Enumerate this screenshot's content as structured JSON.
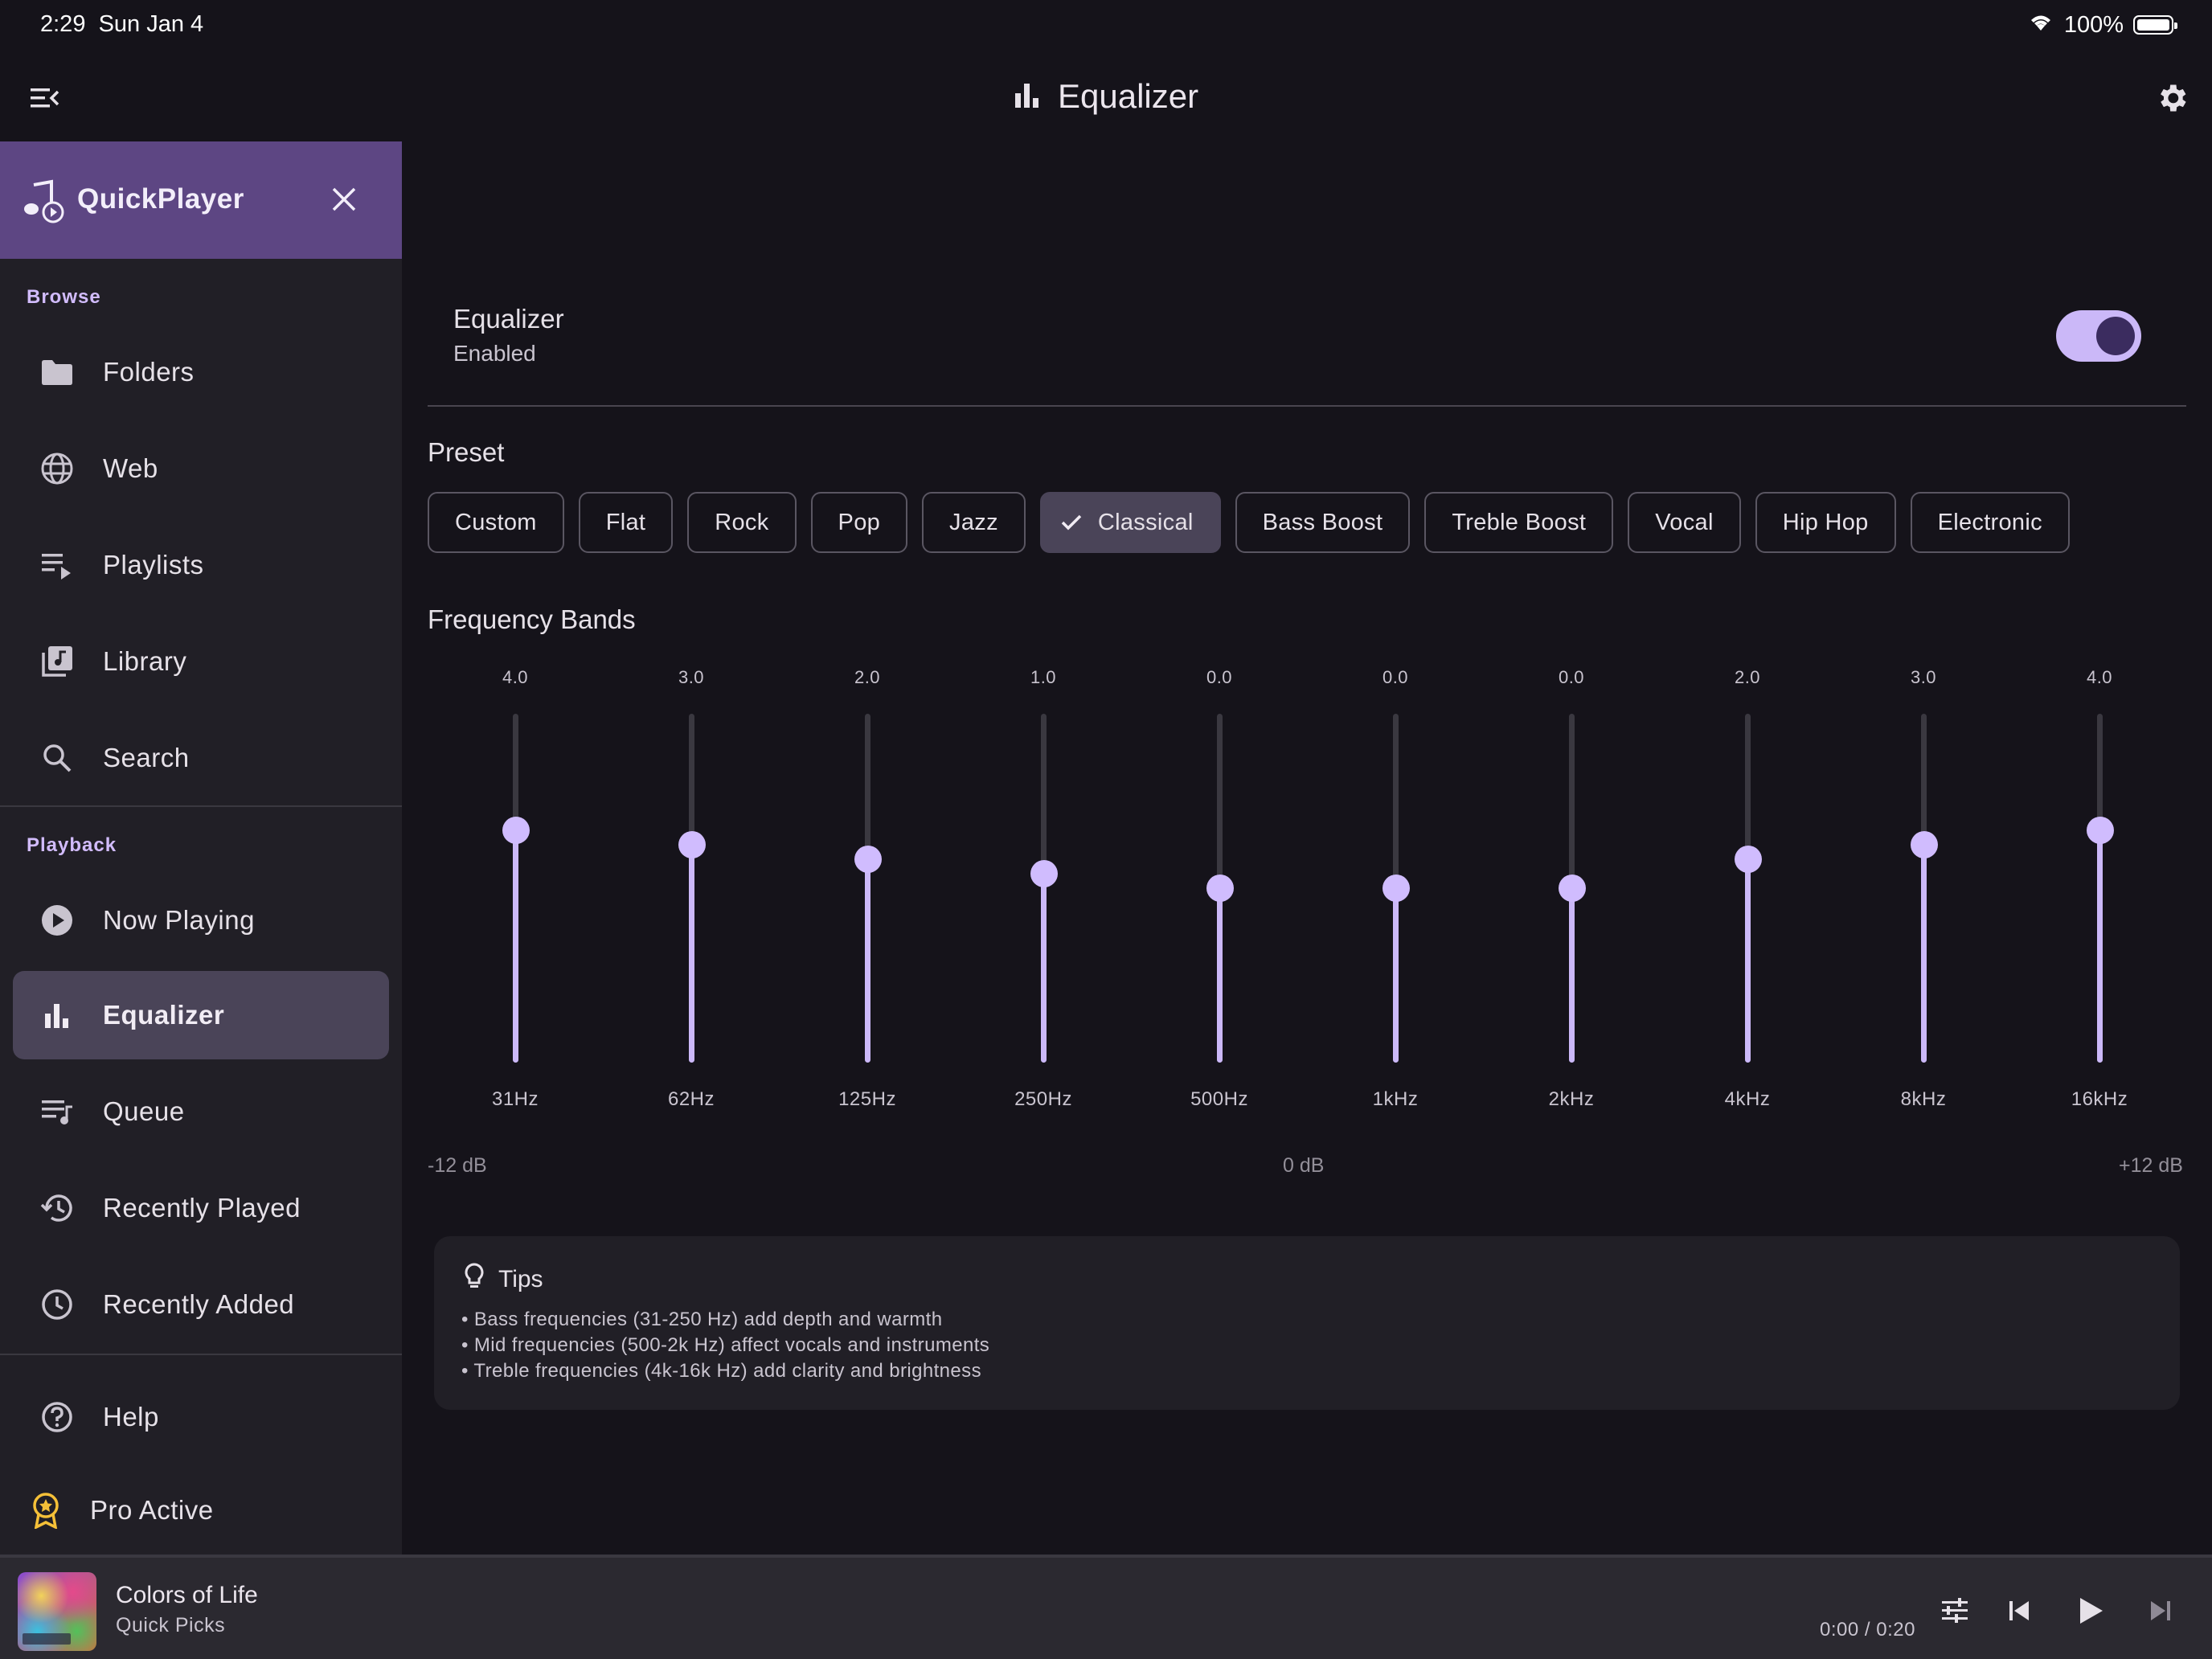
{
  "status_bar": {
    "time": "2:29",
    "date": "Sun Jan 4",
    "battery": "100%",
    "icons": [
      "wifi-icon",
      "battery-icon"
    ]
  },
  "app_bar": {
    "title": "Equalizer",
    "icons": [
      "menu-open-icon",
      "equalizer-icon",
      "gear-icon"
    ]
  },
  "sidebar": {
    "app_name": "QuickPlayer",
    "sections": {
      "browse": "Browse",
      "playback": "Playback"
    },
    "browse_items": [
      {
        "label": "Folders",
        "icon": "folder-icon"
      },
      {
        "label": "Web",
        "icon": "globe-icon"
      },
      {
        "label": "Playlists",
        "icon": "playlist-icon"
      },
      {
        "label": "Library",
        "icon": "library-icon"
      },
      {
        "label": "Search",
        "icon": "search-icon"
      }
    ],
    "playback_items": [
      {
        "label": "Now Playing",
        "icon": "play-circle-icon"
      },
      {
        "label": "Equalizer",
        "icon": "equalizer-icon",
        "active": true
      },
      {
        "label": "Queue",
        "icon": "queue-icon"
      },
      {
        "label": "Recently Played",
        "icon": "history-icon"
      },
      {
        "label": "Recently Added",
        "icon": "clock-icon"
      }
    ],
    "footer_items": [
      {
        "label": "Help",
        "icon": "help-icon"
      },
      {
        "label": "Pro Active",
        "icon": "award-icon"
      }
    ],
    "accent": "#5d4683"
  },
  "equalizer": {
    "title": "Equalizer",
    "status": "Enabled",
    "enabled": true
  },
  "preset": {
    "label": "Preset",
    "options": [
      "Custom",
      "Flat",
      "Rock",
      "Pop",
      "Jazz",
      "Classical",
      "Bass Boost",
      "Treble Boost",
      "Vocal",
      "Hip Hop",
      "Electronic"
    ],
    "selected": "Classical"
  },
  "bands": {
    "label": "Frequency Bands",
    "items": [
      {
        "freq": "31Hz",
        "value": "4.0"
      },
      {
        "freq": "62Hz",
        "value": "3.0"
      },
      {
        "freq": "125Hz",
        "value": "2.0"
      },
      {
        "freq": "250Hz",
        "value": "1.0"
      },
      {
        "freq": "500Hz",
        "value": "0.0"
      },
      {
        "freq": "1kHz",
        "value": "0.0"
      },
      {
        "freq": "2kHz",
        "value": "0.0"
      },
      {
        "freq": "4kHz",
        "value": "2.0"
      },
      {
        "freq": "8kHz",
        "value": "3.0"
      },
      {
        "freq": "16kHz",
        "value": "4.0"
      }
    ],
    "range": {
      "min": -12,
      "max": 12
    },
    "min_label": "-12 dB",
    "mid_label": "0 dB",
    "max_label": "+12 dB",
    "accent": "#cbb8f8"
  },
  "tips": {
    "title": "Tips",
    "lines": [
      "• Bass frequencies (31-250 Hz) add depth and warmth",
      "• Mid frequencies (500-2k Hz) affect vocals and instruments",
      "• Treble frequencies (4k-16k Hz) add clarity and brightness"
    ]
  },
  "player": {
    "title": "Colors of Life",
    "subtitle": "Quick Picks",
    "time": "0:00 / 0:20",
    "icons": [
      "tune-icon",
      "skip-previous-icon",
      "play-icon",
      "skip-next-icon"
    ]
  }
}
